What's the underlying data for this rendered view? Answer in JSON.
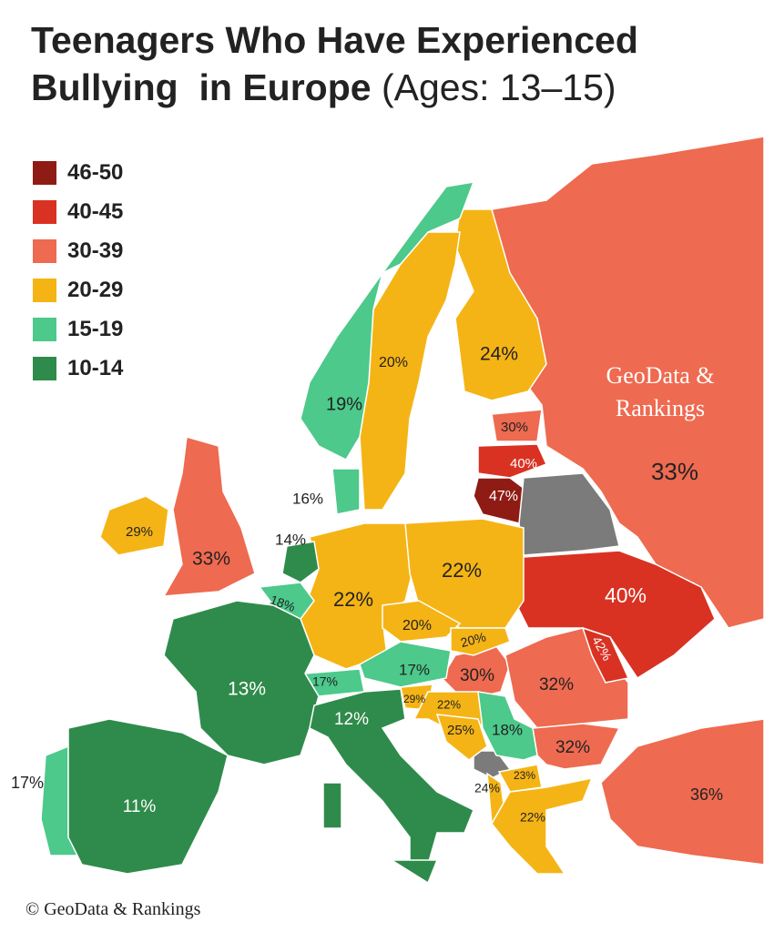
{
  "title": {
    "line1": "Teenagers Who Have Experienced",
    "line2_bold": "Bullying  in Europe",
    "line2_sub": "(Ages: 13–15)"
  },
  "legend": [
    {
      "label": "46-50",
      "color": "#8e1c14"
    },
    {
      "label": "40-45",
      "color": "#d93222"
    },
    {
      "label": "30-39",
      "color": "#ee6a50"
    },
    {
      "label": "20-29",
      "color": "#f5b415"
    },
    {
      "label": "15-19",
      "color": "#4cc98b"
    },
    {
      "label": "10-14",
      "color": "#2f8b4b"
    }
  ],
  "no_data_color": "#7b7b7b",
  "regions": {
    "russia": "33%",
    "estonia": "30%",
    "latvia": "40%",
    "lithuania": "47%",
    "ukraine": "40%",
    "moldova": "42%",
    "finland": "24%",
    "sweden": "20%",
    "norway": "19%",
    "denmark": "16%",
    "uk": "33%",
    "ireland": "29%",
    "netherlands": "14%",
    "belgium": "18%",
    "germany": "22%",
    "poland": "22%",
    "czechia": "20%",
    "slovakia": "20%",
    "austria": "17%",
    "switzerland": "17%",
    "france": "13%",
    "hungary": "30%",
    "romania": "32%",
    "bulgaria": "32%",
    "serbia": "18%",
    "slovenia": "29%",
    "croatia": "22%",
    "bosnia": "25%",
    "north_macedonia": "23%",
    "albania": "24%",
    "greece": "22%",
    "turkey": "36%",
    "italy": "12%",
    "spain": "11%",
    "portugal": "17%"
  },
  "watermark": "GeoData & Rankings",
  "copyright": "© GeoData & Rankings"
}
